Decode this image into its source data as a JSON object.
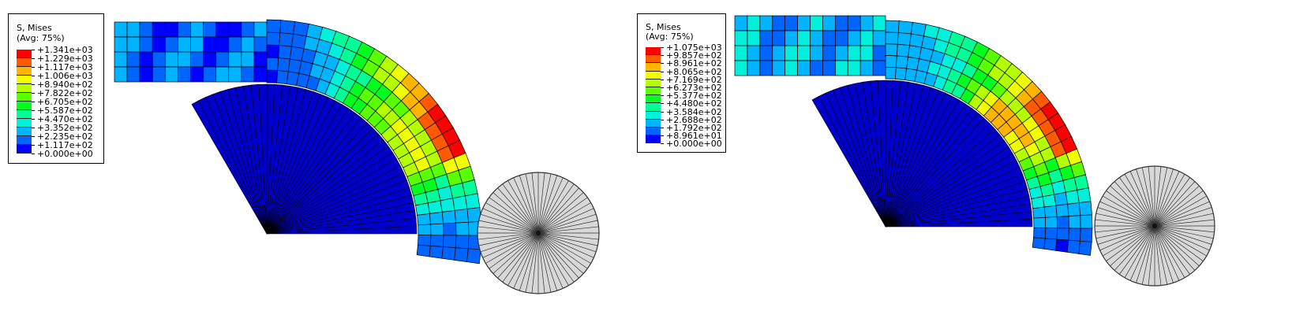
{
  "panels": [
    {
      "legend": {
        "title_line1": "S, Mises",
        "title_line2": "(Avg: 75%)",
        "labels": [
          "+1.341e+03",
          "+1.229e+03",
          "+1.117e+03",
          "+1.006e+03",
          "+8.940e+02",
          "+7.822e+02",
          "+6.705e+02",
          "+5.587e+02",
          "+4.470e+02",
          "+3.352e+02",
          "+2.235e+02",
          "+1.117e+02",
          "+0.000e+00"
        ]
      }
    },
    {
      "legend": {
        "title_line1": "S, Mises",
        "title_line2": "(Avg: 75%)",
        "labels": [
          "+1.075e+03",
          "+9.857e+02",
          "+8.961e+02",
          "+8.065e+02",
          "+7.169e+02",
          "+6.273e+02",
          "+5.377e+02",
          "+4.480e+02",
          "+3.584e+02",
          "+2.688e+02",
          "+1.792e+02",
          "+8.961e+01",
          "+0.000e+00"
        ]
      }
    }
  ],
  "colors": {
    "scale": [
      "#ff0000",
      "#ff5a00",
      "#ffb400",
      "#f0ff00",
      "#b4ff00",
      "#5aff00",
      "#00ff1e",
      "#00ff96",
      "#00f0dc",
      "#00b4ff",
      "#0064ff",
      "#0000ff"
    ],
    "die": "#0000cc",
    "roller": "#d8d8d8"
  }
}
